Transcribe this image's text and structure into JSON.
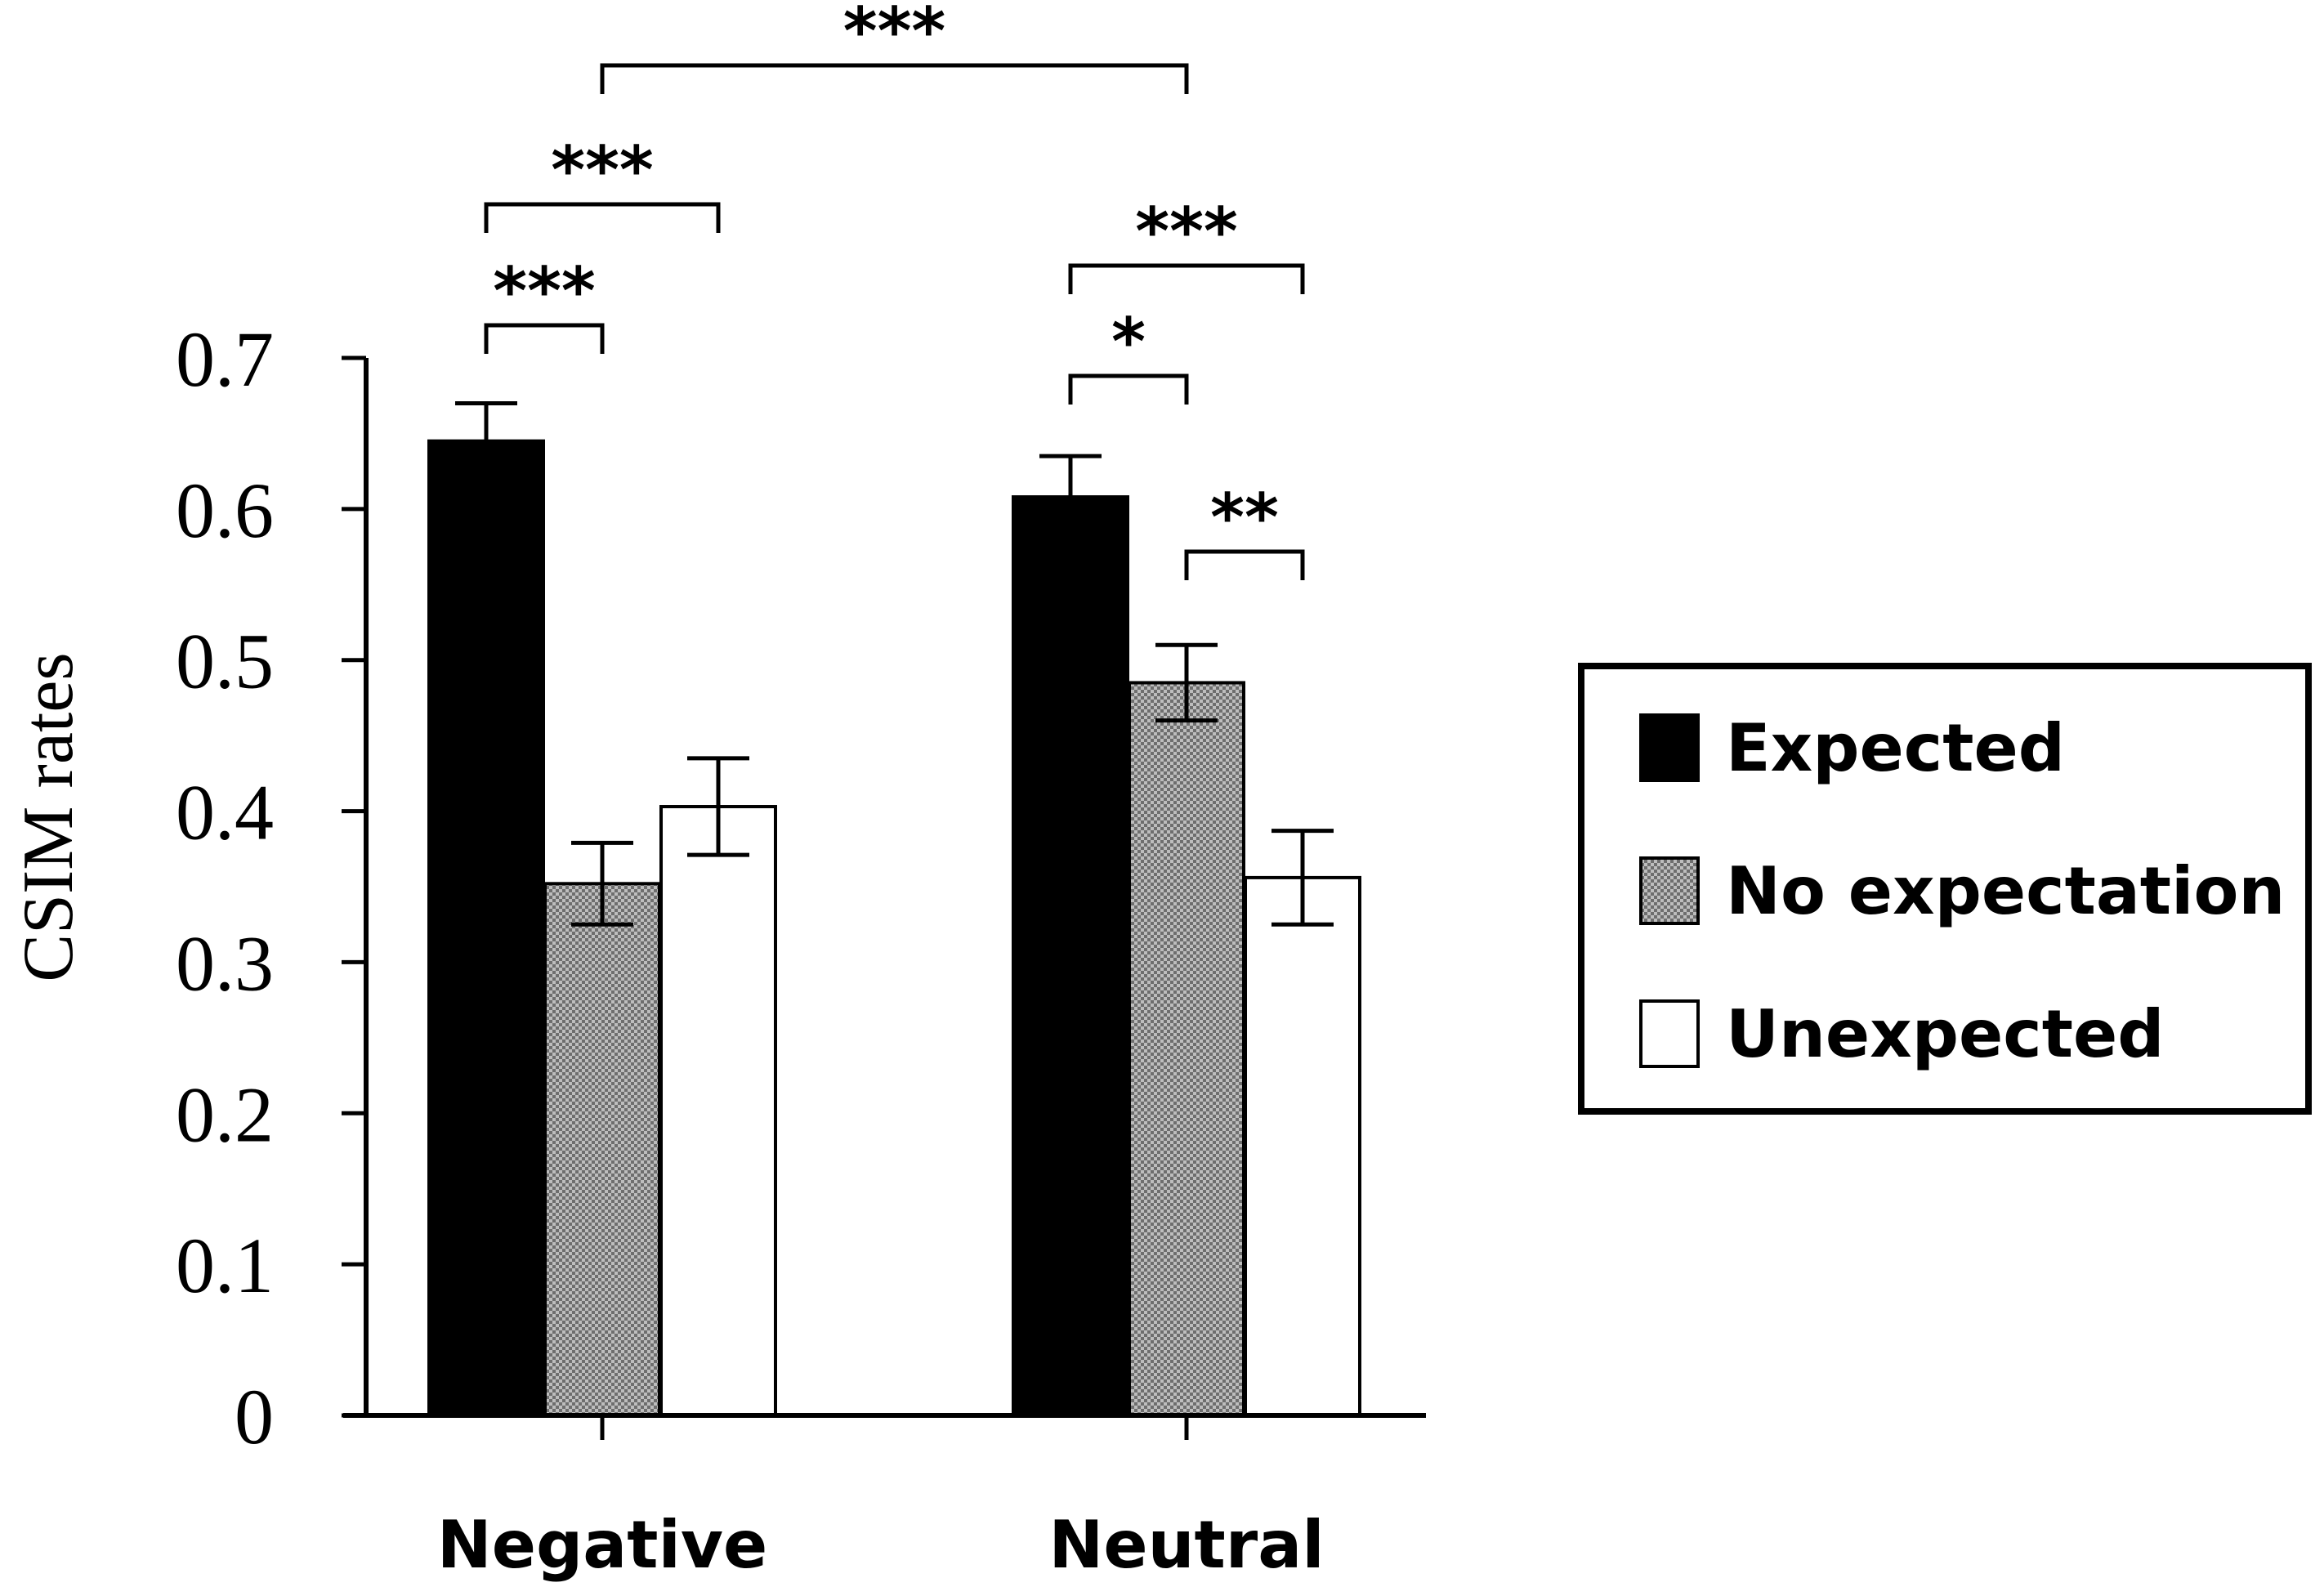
{
  "chart_data": {
    "type": "bar",
    "title": "",
    "xlabel": "",
    "ylabel": "CSIM rates",
    "ylim": [
      0,
      0.7
    ],
    "yticks": [
      0,
      0.1,
      0.2,
      0.3,
      0.4,
      0.5,
      0.6,
      0.7
    ],
    "ytick_labels": [
      "0",
      "0.1",
      "0.2",
      "0.3",
      "0.4",
      "0.5",
      "0.6",
      "0.7"
    ],
    "grid": false,
    "legend_position": "right",
    "categories": [
      "Negative",
      "Neutral"
    ],
    "series": [
      {
        "name": "Expected",
        "fill": "#000000",
        "pattern": "solid",
        "values": [
          0.645,
          0.608
        ],
        "error": [
          0.025,
          0.027
        ]
      },
      {
        "name": "No expectation",
        "fill": "#9a9a9a",
        "pattern": "checker",
        "values": [
          0.352,
          0.485
        ],
        "error": [
          0.027,
          0.025
        ]
      },
      {
        "name": "Unexpected",
        "fill": "#ffffff",
        "pattern": "solid",
        "values": [
          0.403,
          0.356
        ],
        "error": [
          0.032,
          0.031
        ]
      }
    ],
    "significance": [
      {
        "label": "***",
        "from": [
          0,
          0
        ],
        "to": [
          0,
          1
        ]
      },
      {
        "label": "***",
        "from": [
          0,
          0
        ],
        "to": [
          0,
          2
        ]
      },
      {
        "label": "***",
        "from": [
          0,
          "group"
        ],
        "to": [
          1,
          "group"
        ]
      },
      {
        "label": "*",
        "from": [
          1,
          0
        ],
        "to": [
          1,
          1
        ]
      },
      {
        "label": "***",
        "from": [
          1,
          0
        ],
        "to": [
          1,
          2
        ]
      },
      {
        "label": "**",
        "from": [
          1,
          1
        ],
        "to": [
          1,
          2
        ]
      }
    ]
  }
}
